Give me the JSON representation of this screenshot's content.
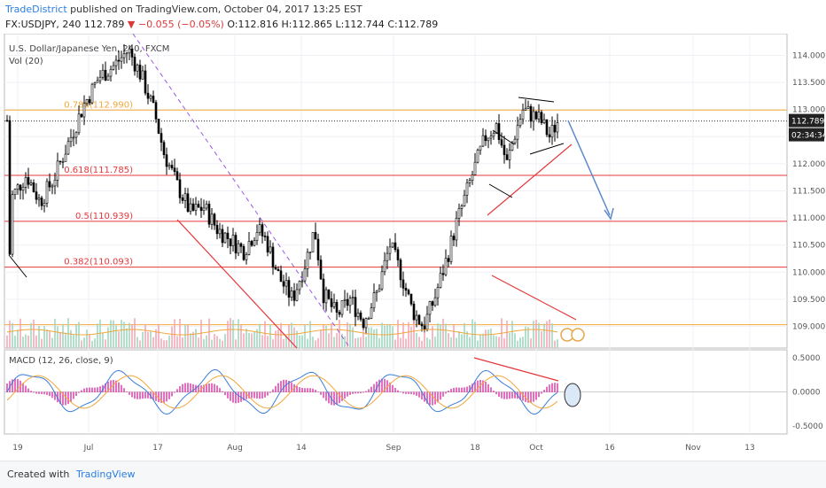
{
  "header": {
    "author": "TradeDistrict",
    "published": "published on TradingView.com, October 04, 2017 13:25 EST",
    "symbol": "FX:USDJPY, 240",
    "last": "112.789",
    "change_arrow": "▼",
    "change": "−0.055 (−0.05%)",
    "o": "O:112.816",
    "h": "H:112.865",
    "l": "L:112.744",
    "c": "C:112.789"
  },
  "chart_data": {
    "type": "candlestick",
    "legend": [
      "U.S. Dollar/Japanese Yen, 240, FXCM",
      "Vol (20)"
    ],
    "price_axis": {
      "ylim": [
        108.6,
        114.4
      ],
      "ticks": [
        "114.000",
        "113.500",
        "113.000",
        "112.500",
        "112.000",
        "111.500",
        "111.000",
        "110.500",
        "110.000",
        "109.500",
        "109.000"
      ]
    },
    "time_axis": {
      "ticks": [
        "19",
        "Jul",
        "17",
        "Aug",
        "14",
        "Sep",
        "18",
        "Oct",
        "16",
        "Nov",
        "13"
      ]
    },
    "price_labels": [
      "112.789",
      "02:34:34"
    ],
    "fibonacci": [
      {
        "label": "0.786(112.990)",
        "value": 112.99,
        "color": "#f2a73b"
      },
      {
        "label": "0.618(111.785)",
        "value": 111.785,
        "color": "#e5383b"
      },
      {
        "label": "0.5(110.939)",
        "value": 110.939,
        "color": "#e5383b"
      },
      {
        "label": "0.382(110.093)",
        "value": 110.093,
        "color": "#e5383b"
      },
      {
        "label": "",
        "value": 109.03,
        "color": "#f2a73b"
      }
    ],
    "current_price": 112.789,
    "approx_closes_by_x": [
      [
        10,
        110.0
      ],
      [
        14,
        111.4
      ],
      [
        30,
        111.8
      ],
      [
        45,
        111.3
      ],
      [
        60,
        111.7
      ],
      [
        75,
        112.3
      ],
      [
        95,
        113.1
      ],
      [
        112,
        113.6
      ],
      [
        128,
        113.8
      ],
      [
        145,
        114.1
      ],
      [
        160,
        113.6
      ],
      [
        175,
        112.9
      ],
      [
        185,
        112.2
      ],
      [
        200,
        111.6
      ],
      [
        215,
        111.1
      ],
      [
        230,
        111.2
      ],
      [
        245,
        110.8
      ],
      [
        260,
        110.6
      ],
      [
        275,
        110.4
      ],
      [
        290,
        110.8
      ],
      [
        300,
        110.6
      ],
      [
        315,
        109.9
      ],
      [
        330,
        109.5
      ],
      [
        345,
        110.2
      ],
      [
        355,
        110.8
      ],
      [
        365,
        109.6
      ],
      [
        380,
        109.2
      ],
      [
        395,
        109.5
      ],
      [
        410,
        109.1
      ],
      [
        425,
        109.6
      ],
      [
        440,
        110.5
      ],
      [
        452,
        110.0
      ],
      [
        465,
        109.3
      ],
      [
        478,
        109.0
      ],
      [
        490,
        109.5
      ],
      [
        505,
        110.3
      ],
      [
        515,
        110.9
      ],
      [
        525,
        111.4
      ],
      [
        535,
        111.9
      ],
      [
        548,
        112.5
      ],
      [
        560,
        112.7
      ],
      [
        572,
        112.0
      ],
      [
        580,
        112.5
      ],
      [
        590,
        113.0
      ],
      [
        600,
        112.9
      ],
      [
        610,
        112.8
      ],
      [
        620,
        112.5
      ],
      [
        630,
        112.8
      ]
    ],
    "macd": {
      "label": "MACD (12, 26, close, 9)",
      "ylim": [
        -0.62,
        0.62
      ],
      "ticks": [
        "0.5000",
        "0.0000",
        "-0.5000"
      ]
    }
  },
  "footer": {
    "created_with": "Created with",
    "brand": "TradingView"
  }
}
